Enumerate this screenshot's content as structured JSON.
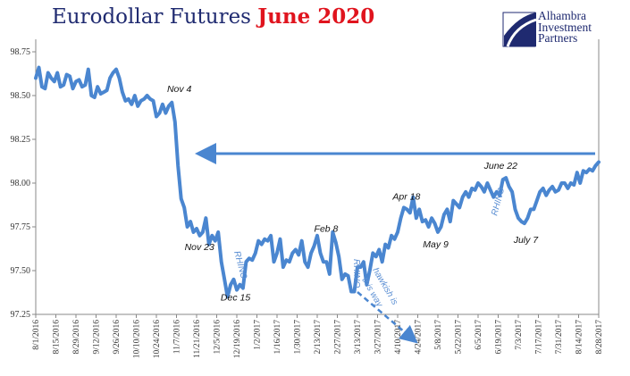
{
  "header": {
    "title_main": "Eurodollar Futures",
    "title_accent": "June 2020",
    "logo_lines": [
      "Alhambra",
      "Investment",
      "Partners"
    ]
  },
  "colors": {
    "series": "#4a86d0",
    "title": "#1f2a70",
    "accent": "#e0141e",
    "axis": "#888888"
  },
  "chart_data": {
    "type": "line",
    "title": "Eurodollar Futures June 2020",
    "ylim": [
      97.25,
      98.75
    ],
    "yticks": [
      "98.75",
      "98.50",
      "98.25",
      "98.00",
      "97.75",
      "97.50",
      "97.25"
    ],
    "ytick_values": [
      98.75,
      98.5,
      98.25,
      98.0,
      97.75,
      97.5,
      97.25
    ],
    "xticks": [
      "8/1/2016",
      "8/15/2016",
      "8/29/2016",
      "9/12/2016",
      "9/26/2016",
      "10/10/2016",
      "10/24/2016",
      "11/7/2016",
      "11/21/2016",
      "12/5/2016",
      "12/19/2016",
      "1/2/2017",
      "1/16/2017",
      "1/30/2017",
      "2/13/2017",
      "2/27/2017",
      "3/13/2017",
      "3/27/2017",
      "4/10/2017",
      "4/24/2017",
      "5/8/2017",
      "5/22/2017",
      "6/5/2017",
      "6/19/2017",
      "7/3/2017",
      "7/17/2017",
      "7/31/2017",
      "8/14/2017",
      "8/28/2017"
    ],
    "grid": false,
    "legend": "none",
    "series": [
      {
        "x_start": "8/1/2016",
        "x_end": "8/28/2017",
        "values": [
          98.6,
          98.66,
          98.55,
          98.54,
          98.63,
          98.6,
          98.58,
          98.63,
          98.55,
          98.56,
          98.62,
          98.61,
          98.54,
          98.58,
          98.59,
          98.55,
          98.56,
          98.65,
          98.5,
          98.49,
          98.55,
          98.51,
          98.52,
          98.53,
          98.6,
          98.63,
          98.65,
          98.6,
          98.52,
          98.47,
          98.48,
          98.45,
          98.5,
          98.44,
          98.47,
          98.48,
          98.5,
          98.48,
          98.47,
          98.38,
          98.4,
          98.45,
          98.4,
          98.44,
          98.46,
          98.35,
          98.1,
          97.91,
          97.86,
          97.75,
          97.78,
          97.72,
          97.74,
          97.7,
          97.72,
          97.8,
          97.65,
          97.7,
          97.67,
          97.72,
          97.55,
          97.45,
          97.35,
          97.42,
          97.45,
          97.39,
          97.42,
          97.4,
          97.55,
          97.57,
          97.56,
          97.6,
          97.67,
          97.65,
          97.68,
          97.67,
          97.7,
          97.55,
          97.6,
          97.68,
          97.52,
          97.56,
          97.55,
          97.6,
          97.62,
          97.59,
          97.67,
          97.55,
          97.52,
          97.6,
          97.64,
          97.7,
          97.6,
          97.55,
          97.55,
          97.48,
          97.72,
          97.66,
          97.58,
          97.45,
          97.48,
          97.47,
          97.38,
          97.38,
          97.52,
          97.52,
          97.55,
          97.42,
          97.5,
          97.6,
          97.58,
          97.62,
          97.55,
          97.65,
          97.63,
          97.7,
          97.68,
          97.72,
          97.8,
          97.86,
          97.85,
          97.83,
          97.92,
          97.8,
          97.85,
          97.78,
          97.79,
          97.75,
          97.8,
          97.77,
          97.72,
          97.75,
          97.82,
          97.85,
          97.78,
          97.9,
          97.88,
          97.86,
          97.92,
          97.95,
          97.92,
          97.97,
          97.96,
          98.0,
          97.98,
          97.95,
          98.0,
          97.96,
          97.92,
          97.95,
          97.93,
          98.02,
          98.03,
          97.98,
          97.95,
          97.85,
          97.8,
          97.78,
          97.77,
          97.8,
          97.85,
          97.85,
          97.9,
          97.95,
          97.97,
          97.93,
          97.96,
          97.98,
          97.95,
          97.96,
          98.0,
          98.0,
          97.97,
          98.0,
          97.99,
          98.06,
          98.0,
          98.07,
          98.06,
          98.08,
          98.07,
          98.1,
          98.12
        ]
      }
    ],
    "annotations": [
      {
        "text": "Nov 4",
        "at": "11/4/2016"
      },
      {
        "text": "Nov 23",
        "at": "11/23/2016"
      },
      {
        "text": "Dec 15",
        "at": "12/15/2016"
      },
      {
        "text": "Feb 8",
        "at": "2/8/2017"
      },
      {
        "text": "Apr 18",
        "at": "4/18/2017"
      },
      {
        "text": "May 9",
        "at": "5/9/2017"
      },
      {
        "text": "June 22",
        "at": "6/22/2017"
      },
      {
        "text": "July 7",
        "at": "7/7/2017"
      }
    ],
    "rhino_labels": [
      "RHINO",
      "RHINO",
      "RHINO"
    ],
    "hawkish_lines": [
      "hawkish is",
      "this way"
    ]
  }
}
